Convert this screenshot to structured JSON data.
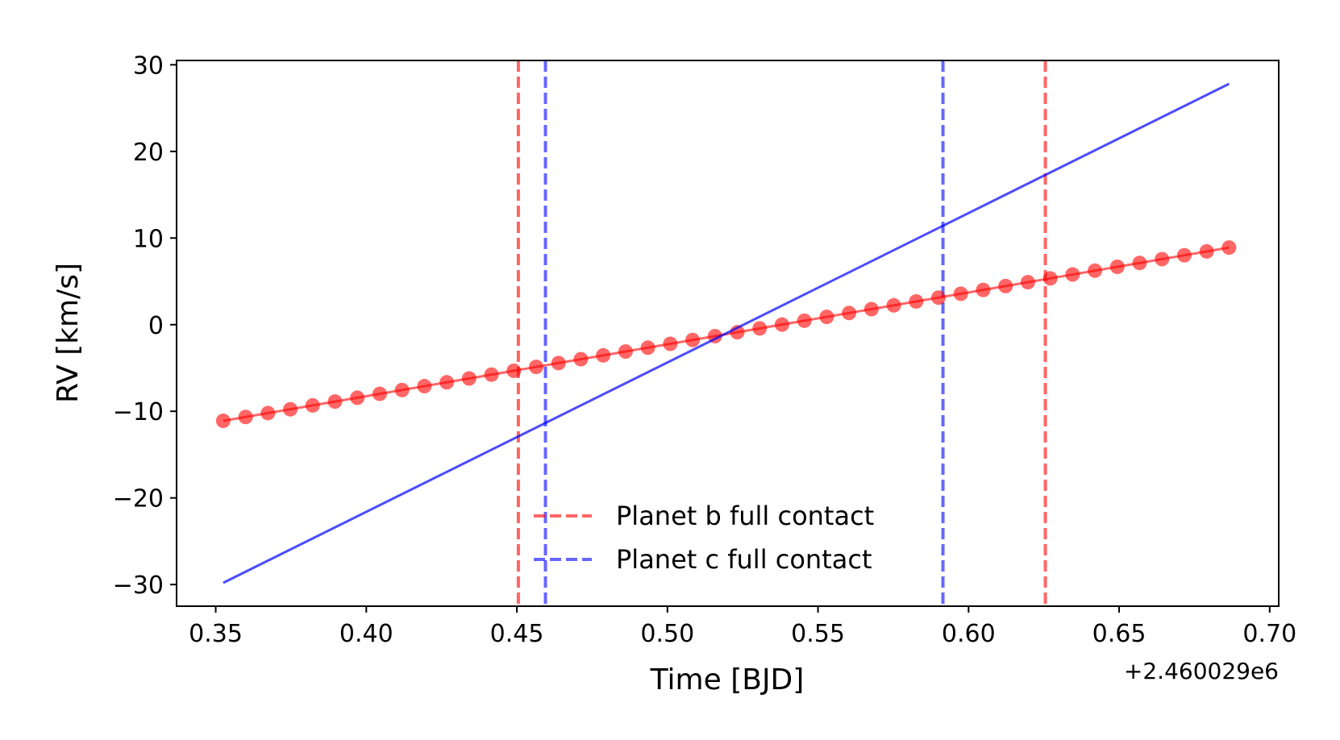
{
  "chart_data": {
    "type": "line",
    "title": "",
    "xlabel": "Time [BJD]",
    "ylabel": "RV [km/s]",
    "x_offset_label": "+2.460029e6",
    "xlim": [
      0.337,
      0.703
    ],
    "ylim": [
      -32.5,
      30.5
    ],
    "x_ticks": [
      0.35,
      0.4,
      0.45,
      0.5,
      0.55,
      0.6,
      0.65,
      0.7
    ],
    "x_tick_labels": [
      "0.35",
      "0.40",
      "0.45",
      "0.50",
      "0.55",
      "0.60",
      "0.65",
      "0.70"
    ],
    "y_ticks": [
      -30,
      -20,
      -10,
      0,
      10,
      20,
      30
    ],
    "y_tick_labels": [
      "−30",
      "−20",
      "−10",
      "0",
      "10",
      "20",
      "30"
    ],
    "grid": false,
    "legend_position": "lower-center",
    "series": [
      {
        "kind": "markers_line",
        "color": "#ff0000",
        "x_start": 0.3525,
        "x_end": 0.6865,
        "n_points": 46,
        "y_start": -11.1,
        "y_end": 8.9
      },
      {
        "kind": "line",
        "color": "#0000ff",
        "x": [
          0.3525,
          0.6865
        ],
        "y": [
          -29.8,
          27.8
        ]
      }
    ],
    "vlines": [
      {
        "group": "b",
        "x": 0.4505,
        "color": "#ff0000"
      },
      {
        "group": "b",
        "x": 0.6255,
        "color": "#ff0000"
      },
      {
        "group": "c",
        "x": 0.4595,
        "color": "#0000ff"
      },
      {
        "group": "c",
        "x": 0.5915,
        "color": "#0000ff"
      }
    ],
    "legend": [
      {
        "label": "Planet b full contact",
        "color": "#ff0000",
        "style": "dashed"
      },
      {
        "label": "Planet c full contact",
        "color": "#0000ff",
        "style": "dashed"
      }
    ]
  }
}
